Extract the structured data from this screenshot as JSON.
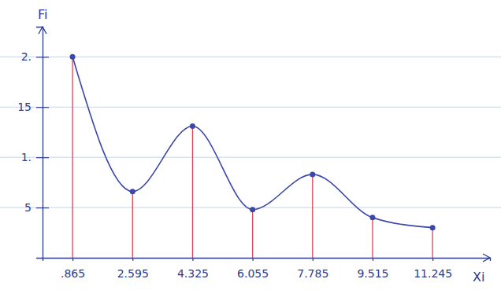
{
  "chart_data": {
    "type": "line",
    "xlabel": "Xi",
    "ylabel": "Fi",
    "x": [
      0.865,
      2.595,
      4.325,
      6.055,
      7.785,
      9.515,
      11.245
    ],
    "values": [
      0.2,
      0.066,
      0.131,
      0.048,
      0.083,
      0.04,
      0.03
    ],
    "color": "#3b48a8",
    "marker": "circle",
    "grid": true,
    "xlim": [
      0,
      12.9
    ],
    "ylim": [
      0,
      0.23
    ],
    "xticks": [
      {
        "value": 0.865,
        "label": ".865"
      },
      2.595,
      4.325,
      6.055,
      7.785,
      9.515,
      11.245
    ],
    "yticks": [
      {
        "value": 0.05,
        "label": "5"
      },
      {
        "value": 0.1,
        "label": "1."
      },
      {
        "value": 0.15,
        "label": "15"
      },
      {
        "value": 0.2,
        "label": "2."
      }
    ]
  }
}
